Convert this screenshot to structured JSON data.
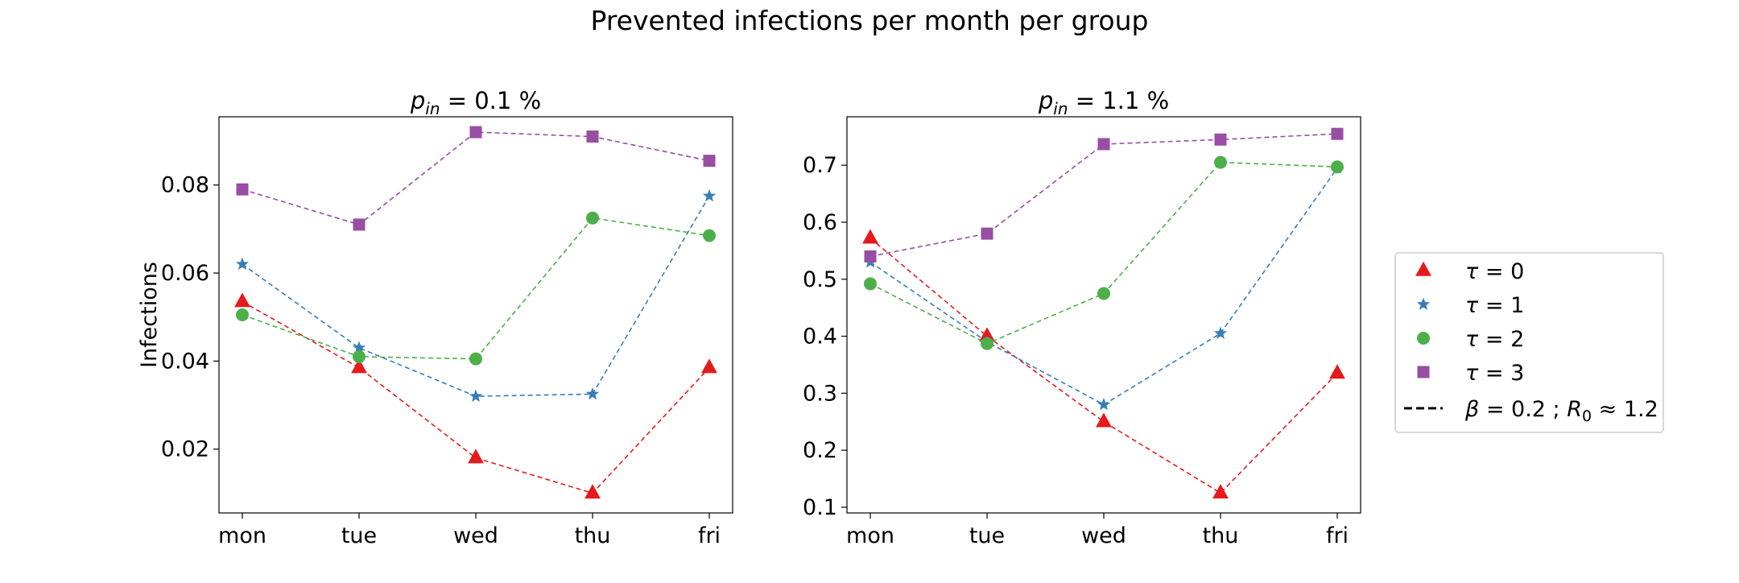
{
  "figure_title": "Prevented infections per month per group",
  "colors": {
    "tau0": "#e41a1c",
    "tau1": "#377eb8",
    "tau2": "#4daf4a",
    "tau3": "#984ea3"
  },
  "markers": {
    "tau0": "triangle",
    "tau1": "star",
    "tau2": "circle",
    "tau3": "square"
  },
  "chart_data": [
    {
      "type": "line",
      "title_var": "p",
      "title_sub": "in",
      "title_rest": " = 0.1 %",
      "ylabel": "Infections",
      "categories": [
        "mon",
        "tue",
        "wed",
        "thu",
        "fri"
      ],
      "ylim": [
        0.0055,
        0.0955
      ],
      "yticks": [
        0.02,
        0.04,
        0.06,
        0.08
      ],
      "ytick_labels": [
        "0.02",
        "0.04",
        "0.06",
        "0.08"
      ],
      "grid": false,
      "series": [
        {
          "key": "tau0",
          "values": [
            0.0535,
            0.0385,
            0.018,
            0.01,
            0.0385
          ]
        },
        {
          "key": "tau1",
          "values": [
            0.062,
            0.043,
            0.032,
            0.0325,
            0.0775
          ]
        },
        {
          "key": "tau2",
          "values": [
            0.0505,
            0.041,
            0.0405,
            0.0725,
            0.0685
          ]
        },
        {
          "key": "tau3",
          "values": [
            0.079,
            0.071,
            0.092,
            0.091,
            0.0855
          ]
        }
      ]
    },
    {
      "type": "line",
      "title_var": "p",
      "title_sub": "in",
      "title_rest": " = 1.1 %",
      "ylabel": "",
      "categories": [
        "mon",
        "tue",
        "wed",
        "thu",
        "fri"
      ],
      "ylim": [
        0.09,
        0.785
      ],
      "yticks": [
        0.1,
        0.2,
        0.3,
        0.4,
        0.5,
        0.6,
        0.7
      ],
      "ytick_labels": [
        "0.1",
        "0.2",
        "0.3",
        "0.4",
        "0.5",
        "0.6",
        "0.7"
      ],
      "grid": false,
      "series": [
        {
          "key": "tau0",
          "values": [
            0.572,
            0.4,
            0.25,
            0.125,
            0.335
          ]
        },
        {
          "key": "tau1",
          "values": [
            0.53,
            0.39,
            0.28,
            0.405,
            0.695
          ]
        },
        {
          "key": "tau2",
          "values": [
            0.492,
            0.387,
            0.475,
            0.705,
            0.697
          ]
        },
        {
          "key": "tau3",
          "values": [
            0.54,
            0.58,
            0.737,
            0.745,
            0.755
          ]
        }
      ]
    }
  ],
  "legend": {
    "placement": "right",
    "items": [
      {
        "key": "tau0",
        "sym": "τ",
        "rel": " = ",
        "val": "0"
      },
      {
        "key": "tau1",
        "sym": "τ",
        "rel": " = ",
        "val": "1"
      },
      {
        "key": "tau2",
        "sym": "τ",
        "rel": " = ",
        "val": "2"
      },
      {
        "key": "tau3",
        "sym": "τ",
        "rel": " = ",
        "val": "3"
      }
    ],
    "line_entry": {
      "beta": "β",
      "beta_val": " = 0.2 ; ",
      "r": "R",
      "r_sub": "0",
      "approx": " ≈ 1.2"
    }
  }
}
